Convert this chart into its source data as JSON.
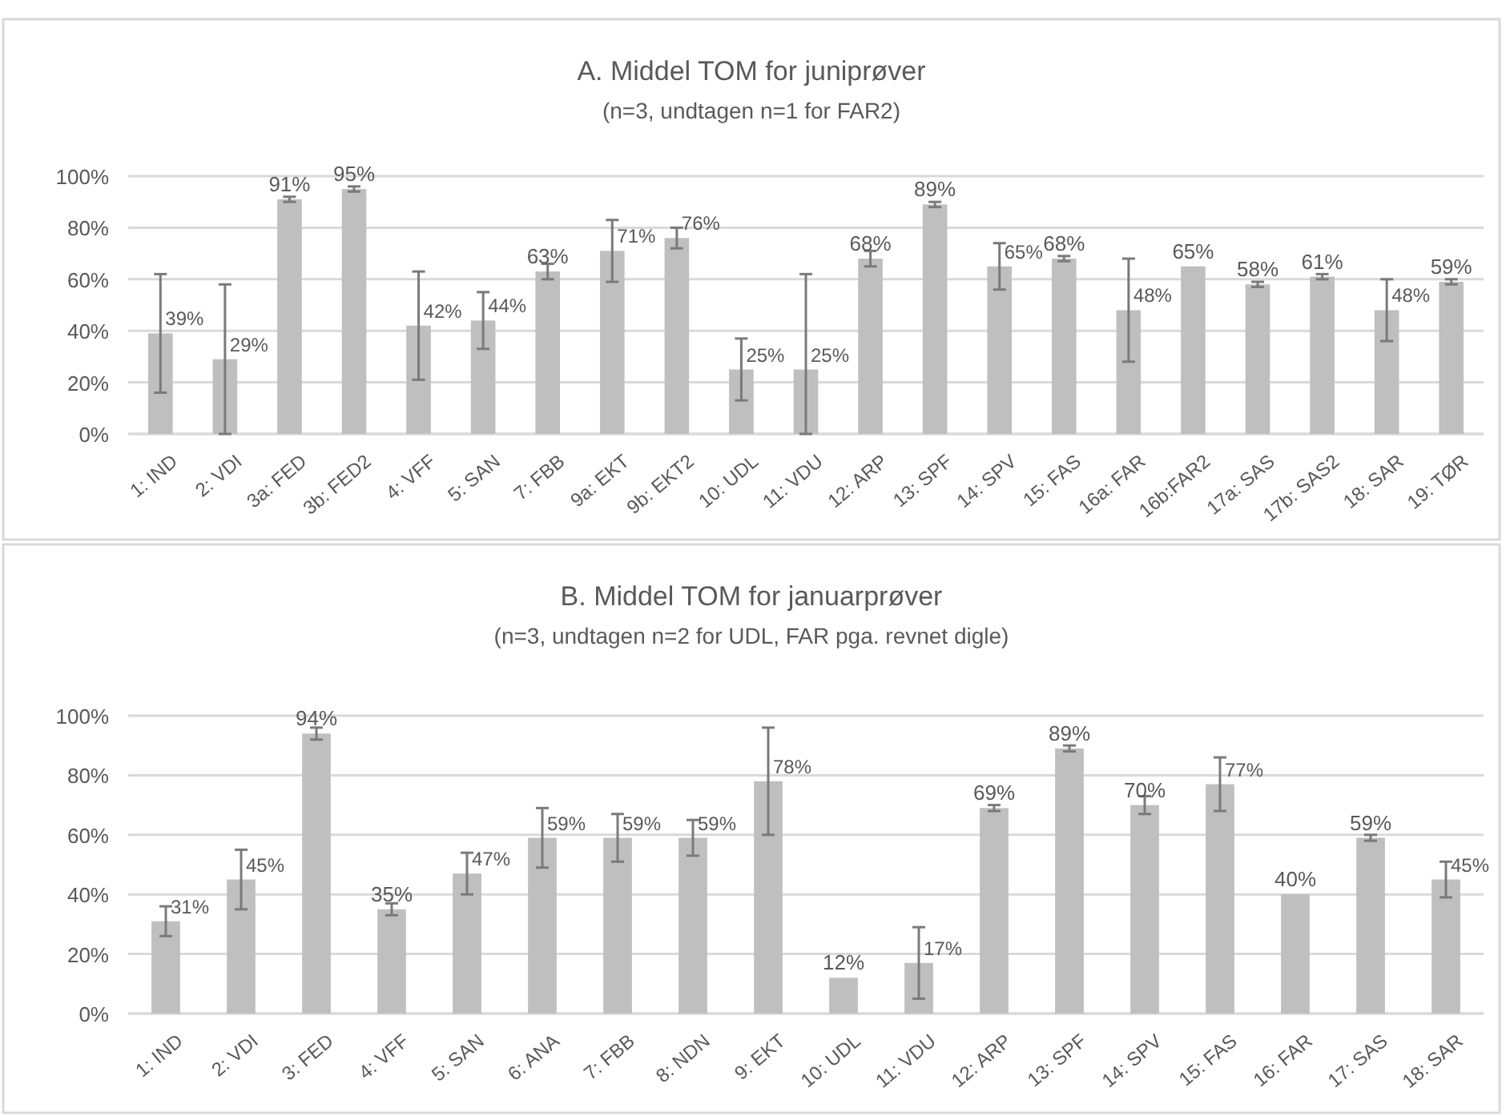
{
  "chart_data": [
    {
      "type": "bar",
      "title": "A. Middel TOM for juniprøver",
      "subtitle": "(n=3, undtagen n=1 for FAR2)",
      "categories": [
        "1: IND",
        "2: VDI",
        "3a: FED",
        "3b: FED2",
        "4: VFF",
        "5: SAN",
        "7: FBB",
        "9a: EKT",
        "9b: EKT2",
        "10: UDL",
        "11: VDU",
        "12: ARP",
        "13: SPF",
        "14: SPV",
        "15: FAS",
        "16a: FAR",
        "16b:FAR2",
        "17a: SAS",
        "17b: SAS2",
        "18: SAR",
        "19: TØR"
      ],
      "series": [
        {
          "color": "#bfbfbf",
          "values": [
            39,
            29,
            91,
            95,
            42,
            44,
            63,
            71,
            76,
            25,
            25,
            68,
            89,
            65,
            68,
            48,
            65,
            58,
            61,
            48,
            59
          ],
          "errors": [
            23,
            29,
            1,
            1,
            21,
            11,
            3,
            12,
            4,
            12,
            [
              0,
              62
            ],
            3,
            1,
            9,
            1,
            20,
            null,
            1,
            1,
            12,
            1
          ],
          "value_labels": [
            "39%",
            "29%",
            "91%",
            "95%",
            "42%",
            "44%",
            "63%",
            "71%",
            "76%",
            "25%",
            "25%",
            "68%",
            "89%",
            "65%",
            "68%",
            "48%",
            "65%",
            "58%",
            "61%",
            "48%",
            "59%"
          ]
        }
      ],
      "ylim": [
        0,
        100
      ],
      "yticks": [
        {
          "value": 0,
          "label": "0%"
        },
        {
          "value": 20,
          "label": "20%"
        },
        {
          "value": 40,
          "label": "40%"
        },
        {
          "value": 60,
          "label": "60%"
        },
        {
          "value": 80,
          "label": "80%"
        },
        {
          "value": 100,
          "label": "100%"
        }
      ],
      "grid": "y"
    },
    {
      "type": "bar",
      "title": "B. Middel TOM for januarprøver",
      "subtitle": "(n=3, undtagen n=2 for UDL, FAR pga. revnet digle)",
      "categories": [
        "1: IND",
        "2: VDI",
        "3: FED",
        "4: VFF",
        "5: SAN",
        "6: ANA",
        "7: FBB",
        "8: NDN",
        "9: EKT",
        "10: UDL",
        "11: VDU",
        "12: ARP",
        "13: SPF",
        "14: SPV",
        "15: FAS",
        "16: FAR",
        "17: SAS",
        "18: SAR"
      ],
      "series": [
        {
          "color": "#bfbfbf",
          "values": [
            31,
            45,
            94,
            35,
            47,
            59,
            59,
            59,
            78,
            12,
            17,
            69,
            89,
            70,
            77,
            40,
            59,
            45
          ],
          "errors": [
            5,
            10,
            2,
            2,
            7,
            10,
            8,
            6,
            18,
            null,
            12,
            1,
            1,
            3,
            9,
            null,
            1,
            6
          ],
          "value_labels": [
            "31%",
            "45%",
            "94%",
            "35%",
            "47%",
            "59%",
            "59%",
            "59%",
            "78%",
            "12%",
            "17%",
            "69%",
            "89%",
            "70%",
            "77%",
            "40%",
            "59%",
            "45%"
          ]
        }
      ],
      "ylim": [
        0,
        100
      ],
      "yticks": [
        {
          "value": 0,
          "label": "0%"
        },
        {
          "value": 20,
          "label": "20%"
        },
        {
          "value": 40,
          "label": "40%"
        },
        {
          "value": 60,
          "label": "60%"
        },
        {
          "value": 80,
          "label": "80%"
        },
        {
          "value": 100,
          "label": "100%"
        }
      ],
      "grid": "y"
    }
  ]
}
